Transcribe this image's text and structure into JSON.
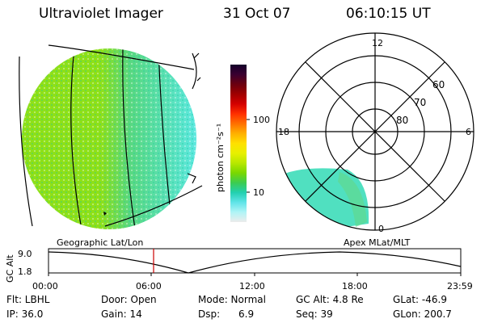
{
  "header": {
    "instrument": "Ultraviolet Imager",
    "date": "31 Oct 07",
    "time": "06:10:15 UT"
  },
  "colorbar": {
    "unit_label": "photon cm⁻²s⁻¹",
    "ticks": [
      "100",
      "10"
    ],
    "colors_top_to_bottom": [
      "#14002a",
      "#3a0030",
      "#6b0010",
      "#a00000",
      "#d40000",
      "#ff3000",
      "#ff7000",
      "#ffb000",
      "#ffe000",
      "#e8f000",
      "#b8e800",
      "#7ad800",
      "#3ccc50",
      "#22d0b0",
      "#60e4e8",
      "#b0f4f6",
      "#ececec"
    ]
  },
  "geo_panel": {
    "caption": "Geographic Lat/Lon",
    "colors": {
      "bright": "#8ee018",
      "mid": "#58d880",
      "dim": "#5ce8e0"
    }
  },
  "polar_panel": {
    "caption": "Apex MLat/MLT",
    "mlt_labels": {
      "top": "12",
      "bottom": "0",
      "left": "18",
      "right": "6"
    },
    "lat_labels": [
      "60",
      "70",
      "80"
    ]
  },
  "altitude_plot": {
    "ylabel": "GC Alt",
    "yticks": [
      "9.0",
      "1.8"
    ],
    "xticks": [
      "00:00",
      "06:00",
      "12:00",
      "18:00",
      "23:59"
    ],
    "marker_color": "#cc0000"
  },
  "info": {
    "flt": "Flt: LBHL",
    "door": "Door: Open",
    "mode": "Mode: Normal",
    "gcalt": "GC Alt: 4.8 Re",
    "glat": "GLat: -46.9",
    "ip": "IP: 36.0",
    "gain": "Gain: 14",
    "dsp": "Dsp:      6.9",
    "seq": "Seq: 39",
    "glon": "GLon: 200.7"
  }
}
